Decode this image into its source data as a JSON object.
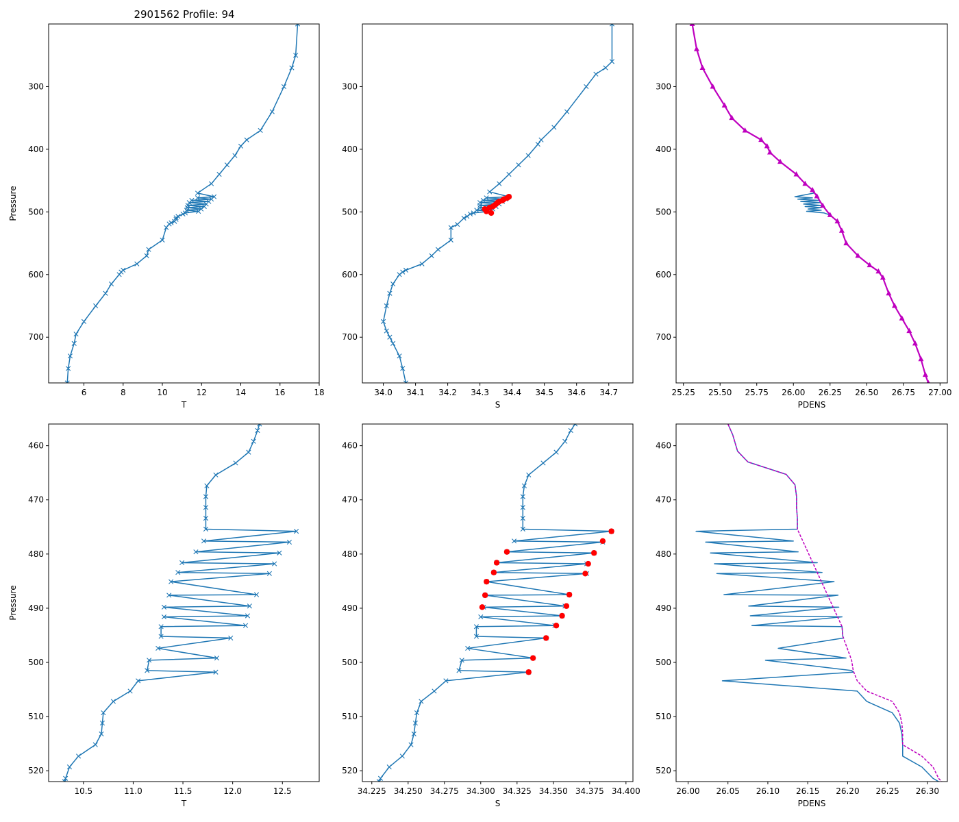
{
  "figure_title": "2901562 Profile: 94",
  "colors": {
    "profile": "#1f77b4",
    "flag": "#ff0000",
    "density": "#bf00bf"
  },
  "chart_data": [
    {
      "id": "T-full",
      "type": "line",
      "title": "2901562 Profile: 94",
      "xlabel": "T",
      "ylabel": "Pressure",
      "xlim": [
        4.2,
        18.0
      ],
      "ylim": [
        773,
        200
      ],
      "xticks": [
        6,
        8,
        10,
        12,
        14,
        16,
        18
      ],
      "xtick_labels": [
        "6",
        "8",
        "10",
        "12",
        "14",
        "16",
        "18"
      ],
      "yticks": [
        300,
        400,
        500,
        600,
        700
      ],
      "ytick_labels": [
        "300",
        "400",
        "500",
        "600",
        "700"
      ],
      "marker": "x",
      "pressure": [
        200,
        250,
        270,
        300,
        340,
        370,
        385,
        395,
        410,
        425,
        440,
        455,
        470,
        475.8,
        477.6,
        479.6,
        481.6,
        483.4,
        485.1,
        487.5,
        489.6,
        491.4,
        493.2,
        495.4,
        497.3,
        499.1,
        501.7,
        503.4,
        507.2,
        509.3,
        512.0,
        515.2,
        517.3,
        519.3,
        525,
        545,
        560,
        570,
        583,
        593,
        596,
        600,
        615,
        630,
        650,
        675,
        695,
        710,
        730,
        750,
        773
      ],
      "values": [
        16.9,
        16.8,
        16.6,
        16.2,
        15.6,
        15.0,
        14.3,
        14.0,
        13.7,
        13.3,
        12.9,
        12.5,
        11.8,
        12.64,
        11.8,
        12.5,
        11.5,
        12.37,
        11.37,
        12.24,
        11.3,
        12.14,
        11.27,
        11.98,
        11.24,
        11.84,
        11.17,
        11.05,
        10.8,
        10.7,
        10.7,
        10.62,
        10.45,
        10.35,
        10.2,
        10.0,
        9.3,
        9.2,
        8.7,
        8.0,
        7.9,
        7.8,
        7.4,
        7.1,
        6.6,
        6.0,
        5.6,
        5.5,
        5.3,
        5.2,
        5.15
      ]
    },
    {
      "id": "S-full",
      "type": "line",
      "title": "",
      "xlabel": "S",
      "ylabel": "",
      "xlim": [
        33.935,
        34.775
      ],
      "ylim": [
        773,
        200
      ],
      "xticks": [
        34.0,
        34.1,
        34.2,
        34.3,
        34.4,
        34.5,
        34.6,
        34.7
      ],
      "xtick_labels": [
        "34.0",
        "34.1",
        "34.2",
        "34.3",
        "34.4",
        "34.5",
        "34.6",
        "34.7"
      ],
      "yticks": [
        300,
        400,
        500,
        600,
        700
      ],
      "ytick_labels": [
        "300",
        "400",
        "500",
        "600",
        "700"
      ],
      "marker": "x",
      "pressure": [
        200,
        260,
        270,
        280,
        300,
        340,
        365,
        385,
        392,
        410,
        425,
        440,
        455,
        468,
        475.8,
        477.6,
        479.6,
        481.6,
        483.4,
        485.1,
        487.5,
        489.6,
        491.4,
        493.2,
        495.4,
        497.3,
        499.1,
        501.7,
        503.4,
        507.2,
        510,
        520,
        525,
        545,
        560,
        570,
        583,
        593,
        596,
        600,
        615,
        630,
        650,
        675,
        690,
        700,
        710,
        730,
        750,
        773
      ],
      "values": [
        34.71,
        34.71,
        34.69,
        34.66,
        34.63,
        34.57,
        34.53,
        34.49,
        34.48,
        34.45,
        34.42,
        34.39,
        34.36,
        34.33,
        34.39,
        34.32,
        34.38,
        34.31,
        34.37,
        34.3,
        34.36,
        34.3,
        34.35,
        34.3,
        34.34,
        34.29,
        34.33,
        34.28,
        34.27,
        34.26,
        34.25,
        34.23,
        34.21,
        34.21,
        34.17,
        34.15,
        34.12,
        34.07,
        34.06,
        34.05,
        34.03,
        34.02,
        34.01,
        34.0,
        34.01,
        34.02,
        34.03,
        34.05,
        34.06,
        34.07
      ],
      "flagged": {
        "pressure": [
          475.8,
          477.6,
          479.6,
          481.6,
          483.4,
          485.1,
          487.5,
          489.6,
          491.4,
          493.2,
          495.4,
          499.1,
          501.7
        ],
        "values": [
          34.39,
          34.385,
          34.375,
          34.37,
          34.36,
          34.355,
          34.35,
          34.345,
          34.34,
          34.33,
          34.315,
          34.32,
          34.335
        ]
      }
    },
    {
      "id": "PDENS-full",
      "type": "line",
      "title": "",
      "xlabel": "PDENS",
      "ylabel": "",
      "xlim": [
        25.2,
        27.05
      ],
      "ylim": [
        773,
        200
      ],
      "xticks": [
        25.25,
        25.5,
        25.75,
        26.0,
        26.25,
        26.5,
        26.75,
        27.0
      ],
      "xtick_labels": [
        "25.25",
        "25.50",
        "25.75",
        "26.00",
        "26.25",
        "26.50",
        "26.75",
        "27.00"
      ],
      "yticks": [
        300,
        400,
        500,
        600,
        700
      ],
      "ytick_labels": [
        "300",
        "400",
        "500",
        "600",
        "700"
      ],
      "marker": "triangle",
      "pressure": [
        200,
        240,
        270,
        300,
        330,
        350,
        370,
        385,
        395,
        405,
        420,
        440,
        455,
        465,
        470,
        475.8,
        477.6,
        479.6,
        481.6,
        483.4,
        485.1,
        487.5,
        489.6,
        491.4,
        493.2,
        495.4,
        497.3,
        499.1,
        501.7,
        505,
        515,
        530,
        550,
        570,
        585,
        595,
        605,
        630,
        650,
        670,
        690,
        710,
        735,
        760,
        773
      ],
      "values": [
        25.31,
        25.34,
        25.38,
        25.45,
        25.53,
        25.58,
        25.67,
        25.78,
        25.82,
        25.84,
        25.91,
        26.02,
        26.08,
        26.13,
        26.14,
        26.01,
        26.13,
        26.03,
        26.17,
        26.05,
        26.18,
        26.07,
        26.19,
        26.08,
        26.19,
        26.1,
        26.19,
        26.09,
        26.21,
        26.25,
        26.3,
        26.33,
        26.36,
        26.44,
        26.52,
        26.58,
        26.61,
        26.65,
        26.69,
        26.74,
        26.79,
        26.83,
        26.87,
        26.9,
        26.92
      ],
      "density_pressure": [
        200,
        240,
        270,
        300,
        330,
        350,
        370,
        385,
        395,
        405,
        420,
        440,
        455,
        465,
        475,
        490,
        505,
        515,
        530,
        550,
        570,
        585,
        595,
        605,
        630,
        650,
        670,
        690,
        710,
        735,
        760,
        773
      ],
      "density_values": [
        25.31,
        25.34,
        25.38,
        25.45,
        25.53,
        25.58,
        25.67,
        25.78,
        25.82,
        25.84,
        25.91,
        26.02,
        26.08,
        26.13,
        26.16,
        26.2,
        26.25,
        26.3,
        26.33,
        26.36,
        26.44,
        26.52,
        26.58,
        26.61,
        26.65,
        26.69,
        26.74,
        26.79,
        26.83,
        26.87,
        26.9,
        26.92
      ]
    },
    {
      "id": "T-zoom",
      "type": "line",
      "title": "",
      "xlabel": "T",
      "ylabel": "Pressure",
      "xlim": [
        10.15,
        12.87
      ],
      "ylim": [
        522,
        456
      ],
      "xticks": [
        10.5,
        11.0,
        11.5,
        12.0,
        12.5
      ],
      "xtick_labels": [
        "10.5",
        "11.0",
        "11.5",
        "12.0",
        "12.5"
      ],
      "yticks": [
        460,
        470,
        480,
        490,
        500,
        510,
        520
      ],
      "ytick_labels": [
        "460",
        "470",
        "480",
        "490",
        "500",
        "510",
        "520"
      ],
      "marker": "x",
      "pressure": [
        456,
        457.2,
        459.2,
        461.2,
        463.2,
        465.4,
        467.4,
        469.4,
        471.4,
        473.4,
        475.4,
        475.8,
        477.6,
        477.8,
        479.6,
        479.8,
        481.6,
        481.8,
        483.4,
        483.6,
        485.1,
        487.5,
        487.6,
        489.6,
        489.8,
        491.4,
        491.6,
        493.2,
        493.4,
        495.2,
        495.5,
        497.4,
        499.2,
        499.6,
        501.5,
        501.8,
        503.4,
        505.3,
        507.2,
        509.3,
        511.2,
        513.2,
        515.2,
        517.3,
        519.3,
        521.4,
        522
      ],
      "values": [
        12.27,
        12.25,
        12.21,
        12.16,
        12.03,
        11.83,
        11.74,
        11.73,
        11.73,
        11.73,
        11.73,
        12.64,
        11.71,
        12.57,
        11.63,
        12.47,
        11.49,
        12.42,
        11.45,
        12.37,
        11.38,
        12.24,
        11.36,
        12.17,
        11.31,
        12.15,
        11.31,
        12.13,
        11.28,
        11.28,
        11.98,
        11.25,
        11.84,
        11.16,
        11.14,
        11.83,
        11.05,
        10.97,
        10.8,
        10.7,
        10.69,
        10.68,
        10.62,
        10.45,
        10.36,
        10.32,
        10.31
      ]
    },
    {
      "id": "S-zoom",
      "type": "line",
      "title": "",
      "xlabel": "S",
      "ylabel": "",
      "xlim": [
        34.2185,
        34.4048
      ],
      "ylim": [
        522,
        456
      ],
      "xticks": [
        34.225,
        34.25,
        34.275,
        34.3,
        34.325,
        34.35,
        34.375,
        34.4
      ],
      "xtick_labels": [
        "34.225",
        "34.250",
        "34.275",
        "34.300",
        "34.325",
        "34.350",
        "34.375",
        "34.400"
      ],
      "yticks": [
        460,
        470,
        480,
        490,
        500,
        510,
        520
      ],
      "ytick_labels": [
        "460",
        "470",
        "480",
        "490",
        "500",
        "510",
        "520"
      ],
      "marker": "x",
      "pressure": [
        456,
        457.2,
        459.2,
        461.2,
        463.2,
        465.4,
        467.4,
        469.4,
        471.4,
        473.4,
        475.4,
        475.8,
        477.6,
        477.8,
        479.6,
        479.8,
        481.6,
        481.8,
        483.4,
        483.6,
        485.1,
        487.5,
        487.6,
        489.6,
        489.8,
        491.4,
        491.6,
        493.2,
        493.4,
        495.2,
        495.5,
        497.4,
        499.2,
        499.6,
        501.5,
        501.8,
        503.4,
        505.3,
        507.2,
        509.3,
        511.2,
        513.2,
        515.2,
        517.3,
        519.3,
        521.4,
        522
      ],
      "values": [
        34.365,
        34.362,
        34.358,
        34.352,
        34.343,
        34.333,
        34.33,
        34.329,
        34.329,
        34.329,
        34.329,
        34.39,
        34.323,
        34.384,
        34.318,
        34.378,
        34.311,
        34.373,
        34.309,
        34.373,
        34.304,
        34.361,
        34.303,
        34.358,
        34.302,
        34.356,
        34.3,
        34.351,
        34.297,
        34.297,
        34.345,
        34.291,
        34.336,
        34.287,
        34.285,
        34.333,
        34.276,
        34.268,
        34.259,
        34.256,
        34.255,
        34.254,
        34.252,
        34.246,
        34.237,
        34.231,
        34.23
      ],
      "flagged": {
        "pressure": [
          475.8,
          477.6,
          479.6,
          479.8,
          481.6,
          481.8,
          483.4,
          483.6,
          485.1,
          487.5,
          487.6,
          489.6,
          489.8,
          491.4,
          493.2,
          495.5,
          499.2,
          501.8
        ],
        "values": [
          34.39,
          34.384,
          34.318,
          34.378,
          34.311,
          34.374,
          34.309,
          34.372,
          34.304,
          34.361,
          34.303,
          34.359,
          34.301,
          34.356,
          34.352,
          34.345,
          34.336,
          34.333
        ]
      }
    },
    {
      "id": "PDENS-zoom",
      "type": "line",
      "title": "",
      "xlabel": "PDENS",
      "ylabel": "",
      "xlim": [
        25.985,
        26.325
      ],
      "ylim": [
        522,
        456
      ],
      "xticks": [
        26.0,
        26.05,
        26.1,
        26.15,
        26.2,
        26.25,
        26.3
      ],
      "xtick_labels": [
        "26.00",
        "26.05",
        "26.10",
        "26.15",
        "26.20",
        "26.25",
        "26.30"
      ],
      "yticks": [
        460,
        470,
        480,
        490,
        500,
        510,
        520
      ],
      "ytick_labels": [
        "460",
        "470",
        "480",
        "490",
        "500",
        "510",
        "520"
      ],
      "marker": "none",
      "pressure": [
        456,
        458.0,
        461.0,
        463.0,
        465.3,
        467.2,
        469.4,
        471.4,
        473.4,
        475.4,
        475.8,
        477.6,
        477.8,
        479.6,
        479.8,
        481.6,
        481.8,
        483.4,
        483.6,
        485.1,
        487.5,
        487.6,
        489.6,
        489.8,
        491.4,
        491.6,
        493.2,
        493.4,
        495.2,
        495.5,
        497.4,
        499.2,
        499.6,
        501.5,
        501.8,
        503.4,
        505.3,
        507.2,
        509.3,
        511.2,
        513.2,
        515.2,
        517.3,
        519.3,
        521.4,
        522
      ],
      "values": [
        26.05,
        26.056,
        26.062,
        26.075,
        26.123,
        26.134,
        26.136,
        26.136,
        26.137,
        26.137,
        26.01,
        26.132,
        26.022,
        26.138,
        26.028,
        26.162,
        26.033,
        26.168,
        26.036,
        26.183,
        26.045,
        26.188,
        26.076,
        26.189,
        26.078,
        26.193,
        26.08,
        26.193,
        26.194,
        26.195,
        26.113,
        26.198,
        26.097,
        26.205,
        26.207,
        26.043,
        26.212,
        26.224,
        26.256,
        26.265,
        26.268,
        26.269,
        26.269,
        26.293,
        26.307,
        26.314
      ],
      "density_pressure": [
        456,
        458.0,
        461.0,
        463.0,
        465.3,
        467.2,
        469.4,
        471.4,
        473.4,
        475.4,
        493.4,
        495.2,
        499.6,
        501.5,
        503.4,
        505.3,
        507.2,
        509.3,
        511.2,
        513.2,
        515.2,
        517.3,
        519.3,
        521.4,
        522
      ],
      "density_values": [
        26.05,
        26.056,
        26.062,
        26.075,
        26.123,
        26.134,
        26.136,
        26.136,
        26.137,
        26.137,
        26.193,
        26.194,
        26.205,
        26.207,
        26.212,
        26.224,
        26.256,
        26.265,
        26.268,
        26.269,
        26.269,
        26.293,
        26.307,
        26.314,
        26.318
      ]
    }
  ]
}
